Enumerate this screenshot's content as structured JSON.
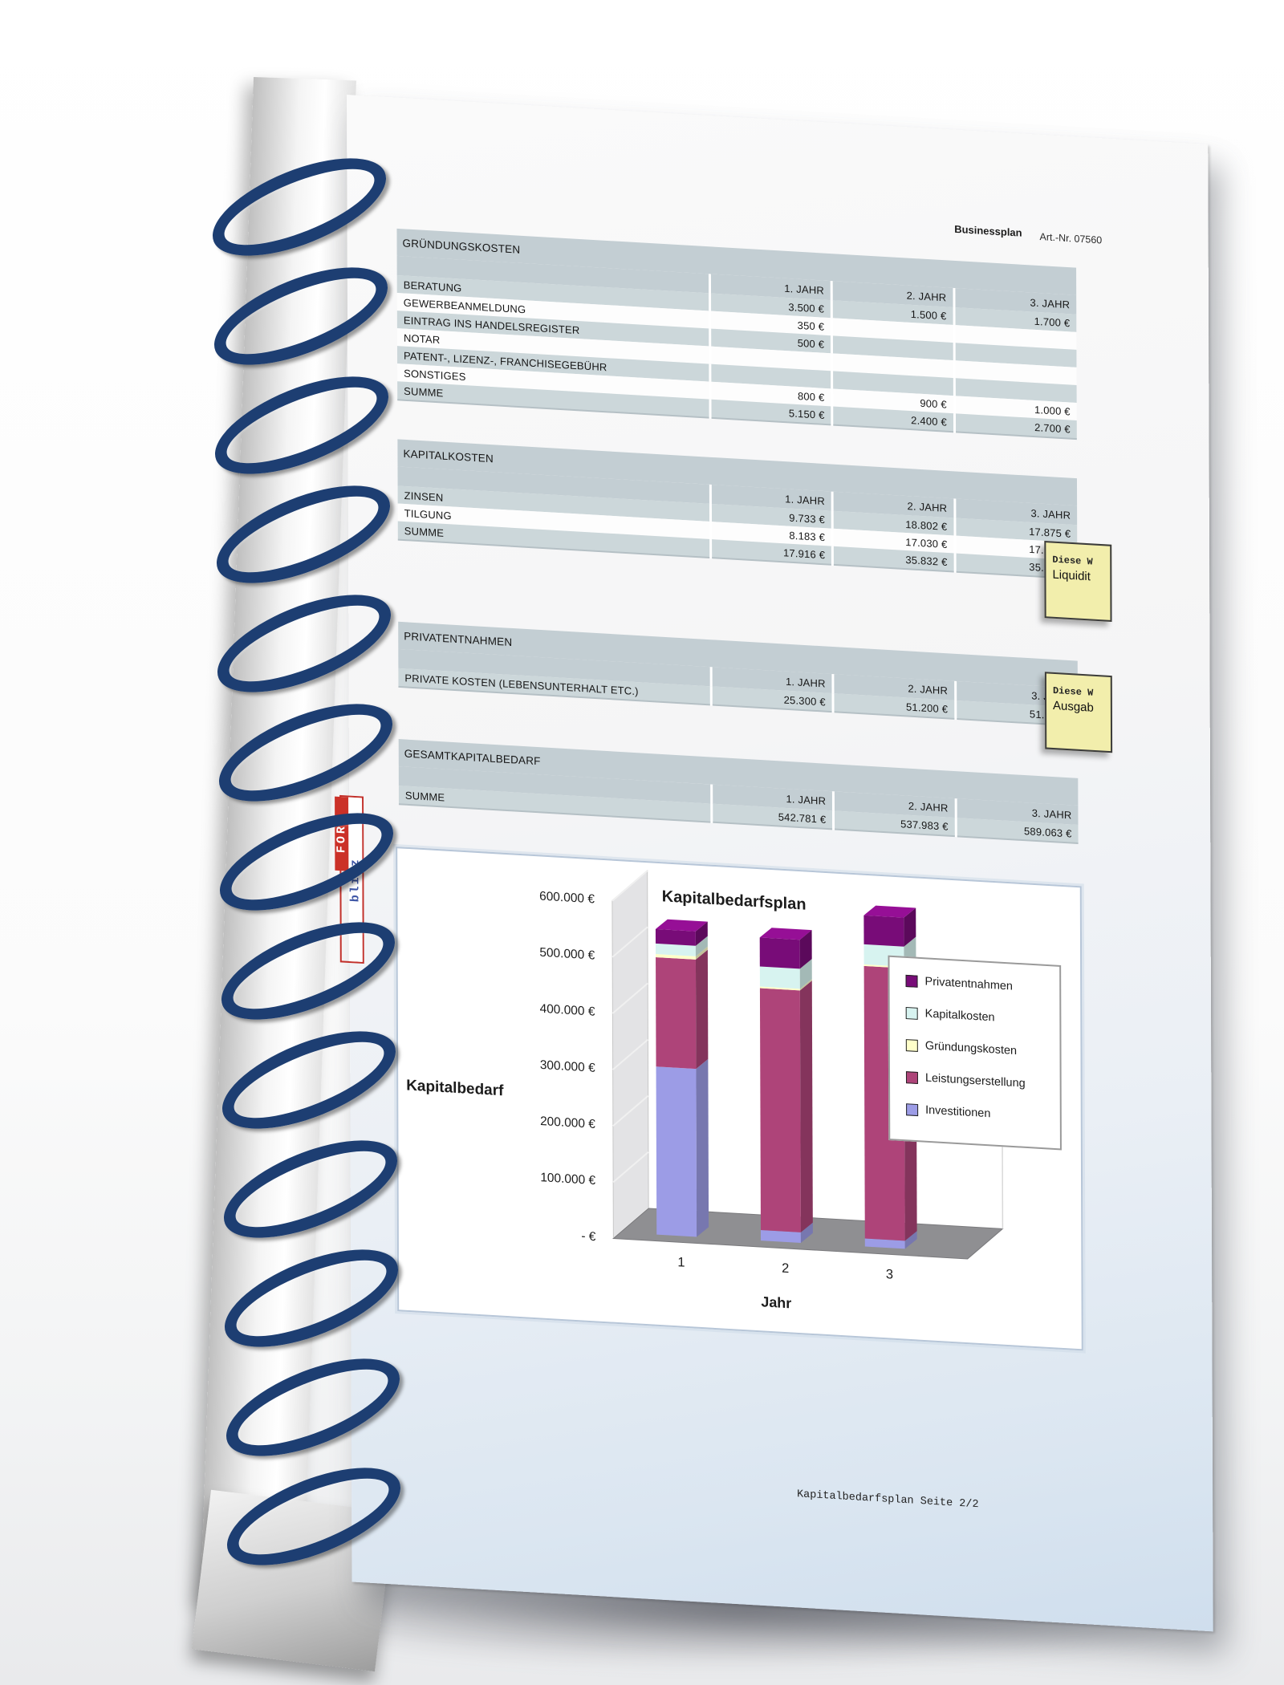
{
  "page": {
    "header": {
      "brand": "Businessplan",
      "art_nr": "Art.-Nr. 07560"
    },
    "footer": "Kapitalbedarfsplan Seite 2/2",
    "watermark": {
      "top": "blitz",
      "bottom": "FORM"
    },
    "year_headers": [
      "1. JAHR",
      "2. JAHR",
      "3. JAHR"
    ],
    "tables": [
      {
        "title": "GRÜNDUNGSKOSTEN",
        "rows": [
          {
            "label": "BERATUNG",
            "values": [
              "3.500 €",
              "1.500 €",
              "1.700 €"
            ]
          },
          {
            "label": "GEWERBEANMELDUNG",
            "values": [
              "350 €",
              "",
              ""
            ]
          },
          {
            "label": "EINTRAG INS HANDELSREGISTER",
            "values": [
              "500 €",
              "",
              ""
            ]
          },
          {
            "label": "NOTAR",
            "values": [
              "",
              "",
              ""
            ]
          },
          {
            "label": "PATENT-, LIZENZ-, FRANCHISEGEBÜHR",
            "values": [
              "",
              "",
              ""
            ]
          },
          {
            "label": "SONSTIGES",
            "values": [
              "800 €",
              "900 €",
              "1.000 €"
            ]
          },
          {
            "label": "SUMME",
            "values": [
              "5.150 €",
              "2.400 €",
              "2.700 €"
            ]
          }
        ]
      },
      {
        "title": "KAPITALKOSTEN",
        "rows": [
          {
            "label": "ZINSEN",
            "values": [
              "9.733 €",
              "18.802 €",
              "17.875 €"
            ]
          },
          {
            "label": "TILGUNG",
            "values": [
              "8.183 €",
              "17.030 €",
              "17.957 €"
            ]
          },
          {
            "label": "SUMME",
            "values": [
              "17.916 €",
              "35.832 €",
              "35.832 €"
            ]
          }
        ]
      },
      {
        "title": "PRIVATENTNAHMEN",
        "rows": [
          {
            "label": "PRIVATE KOSTEN (LEBENSUNTERHALT ETC.)",
            "values": [
              "25.300 €",
              "51.200 €",
              "51.200 €"
            ]
          }
        ]
      },
      {
        "title": "GESAMTKAPITALBEDARF",
        "rows": [
          {
            "label": "SUMME",
            "values": [
              "542.781 €",
              "537.983 €",
              "589.063 €"
            ]
          }
        ]
      }
    ],
    "sticky_notes": {
      "note1": {
        "line1": "Diese W",
        "line2": "Liquidit"
      },
      "note2": {
        "line1": "Diese W",
        "line2": "Ausgab"
      }
    }
  },
  "chart_data": {
    "type": "bar",
    "stacked": true,
    "style": "3d-column",
    "title": "Kapitalbedarfsplan",
    "xlabel": "Jahr",
    "ylabel": "Kapitalbedarf",
    "categories": [
      "1",
      "2",
      "3"
    ],
    "series": [
      {
        "name": "Investitionen",
        "color": "#9c9ce6",
        "values": [
          300000,
          19000,
          14000
        ]
      },
      {
        "name": "Leistungserstellung",
        "color": "#ae4479",
        "values": [
          194415,
          429551,
          485331
        ]
      },
      {
        "name": "Gründungskosten",
        "color": "#ffffc9",
        "values": [
          5150,
          2400,
          2700
        ]
      },
      {
        "name": "Kapitalkosten",
        "color": "#d7f3f0",
        "values": [
          17916,
          35832,
          35832
        ]
      },
      {
        "name": "Privatentnahmen",
        "color": "#780c78",
        "values": [
          25300,
          51200,
          51200
        ]
      }
    ],
    "totals": [
      542781,
      537983,
      589063
    ],
    "ylim": [
      0,
      600000
    ],
    "yticks": [
      "600.000 €",
      "500.000 €",
      "400.000 €",
      "300.000 €",
      "200.000 €",
      "100.000 €",
      "- €"
    ],
    "legend": {
      "position": "right-overlay",
      "entries": [
        "Privatentnahmen",
        "Kapitalkosten",
        "Gründungskosten",
        "Leistungserstellung",
        "Investitionen"
      ]
    },
    "grid": "left-wall-diagonals"
  }
}
